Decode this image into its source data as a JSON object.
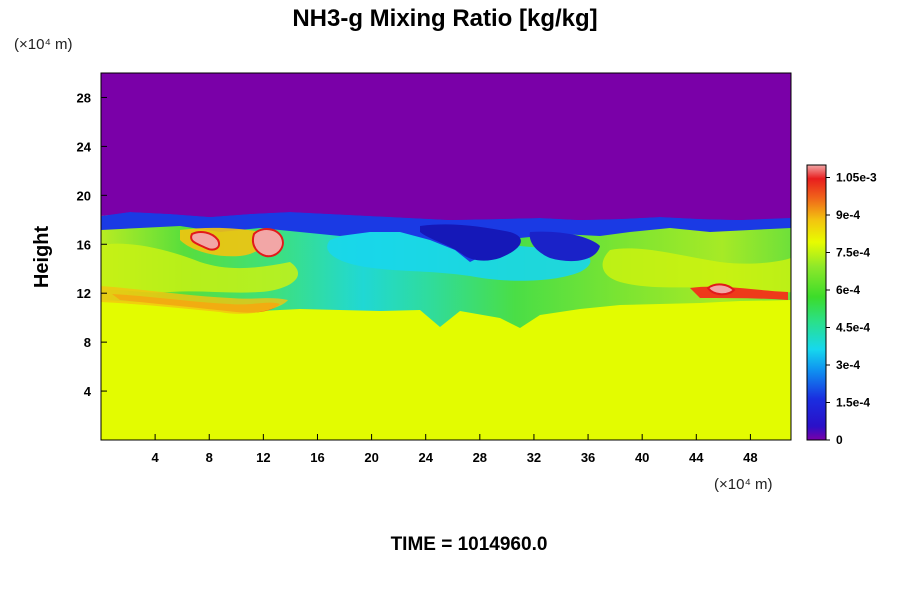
{
  "chart_data": {
    "type": "heatmap",
    "title": "NH3-g Mixing Ratio [kg/kg]",
    "ylabel": "Height",
    "x_unit_label": "(×10⁴ m)",
    "y_unit_label": "(×10⁴ m)",
    "xlim": [
      0,
      51
    ],
    "ylim": [
      0,
      30
    ],
    "x_ticks": [
      4,
      8,
      12,
      16,
      20,
      24,
      28,
      32,
      36,
      40,
      44,
      48
    ],
    "y_ticks": [
      4,
      8,
      12,
      16,
      20,
      24,
      28
    ],
    "colorbar": {
      "min": 0,
      "max": 0.0011,
      "tick_values": [
        0,
        0.00015,
        0.0003,
        0.00045,
        0.0006,
        0.00075,
        0.0009,
        0.00105
      ],
      "tick_labels": [
        "0",
        "1.5e-4",
        "3e-4",
        "4.5e-4",
        "6e-4",
        "7.5e-4",
        "9e-4",
        "1.05e-3"
      ],
      "colors": [
        "#7a00a8",
        "#1a1ad0",
        "#0f6ef0",
        "#16d2ee",
        "#2ae08a",
        "#3cdc2a",
        "#a6ea26",
        "#e8fc00",
        "#f3c410",
        "#f0641a",
        "#e81e1e",
        "#f2a6a6"
      ]
    },
    "layers": [
      {
        "name": "lower",
        "y_range": [
          0,
          11.5
        ],
        "value": 0.00077
      },
      {
        "name": "mixed",
        "y_range": [
          11.5,
          17.5
        ],
        "value": 0.0006
      },
      {
        "name": "upper",
        "y_range": [
          17.5,
          30
        ],
        "value": 0.0
      }
    ],
    "features": [
      {
        "kind": "max_blob",
        "x": 12.0,
        "y": 16.3,
        "value": 0.0011
      },
      {
        "kind": "max_blob",
        "x": 7.5,
        "y": 16.3,
        "value": 0.0011
      },
      {
        "kind": "max_blob",
        "x": 45.5,
        "y": 12.5,
        "value": 0.0011
      },
      {
        "kind": "min_region",
        "x": 28,
        "y": 17.0,
        "value": 0.00015
      },
      {
        "kind": "min_region",
        "x": 31,
        "y": 15.0,
        "value": 0.00025
      }
    ]
  },
  "footer": {
    "time_label": "TIME = 1014960.0"
  }
}
